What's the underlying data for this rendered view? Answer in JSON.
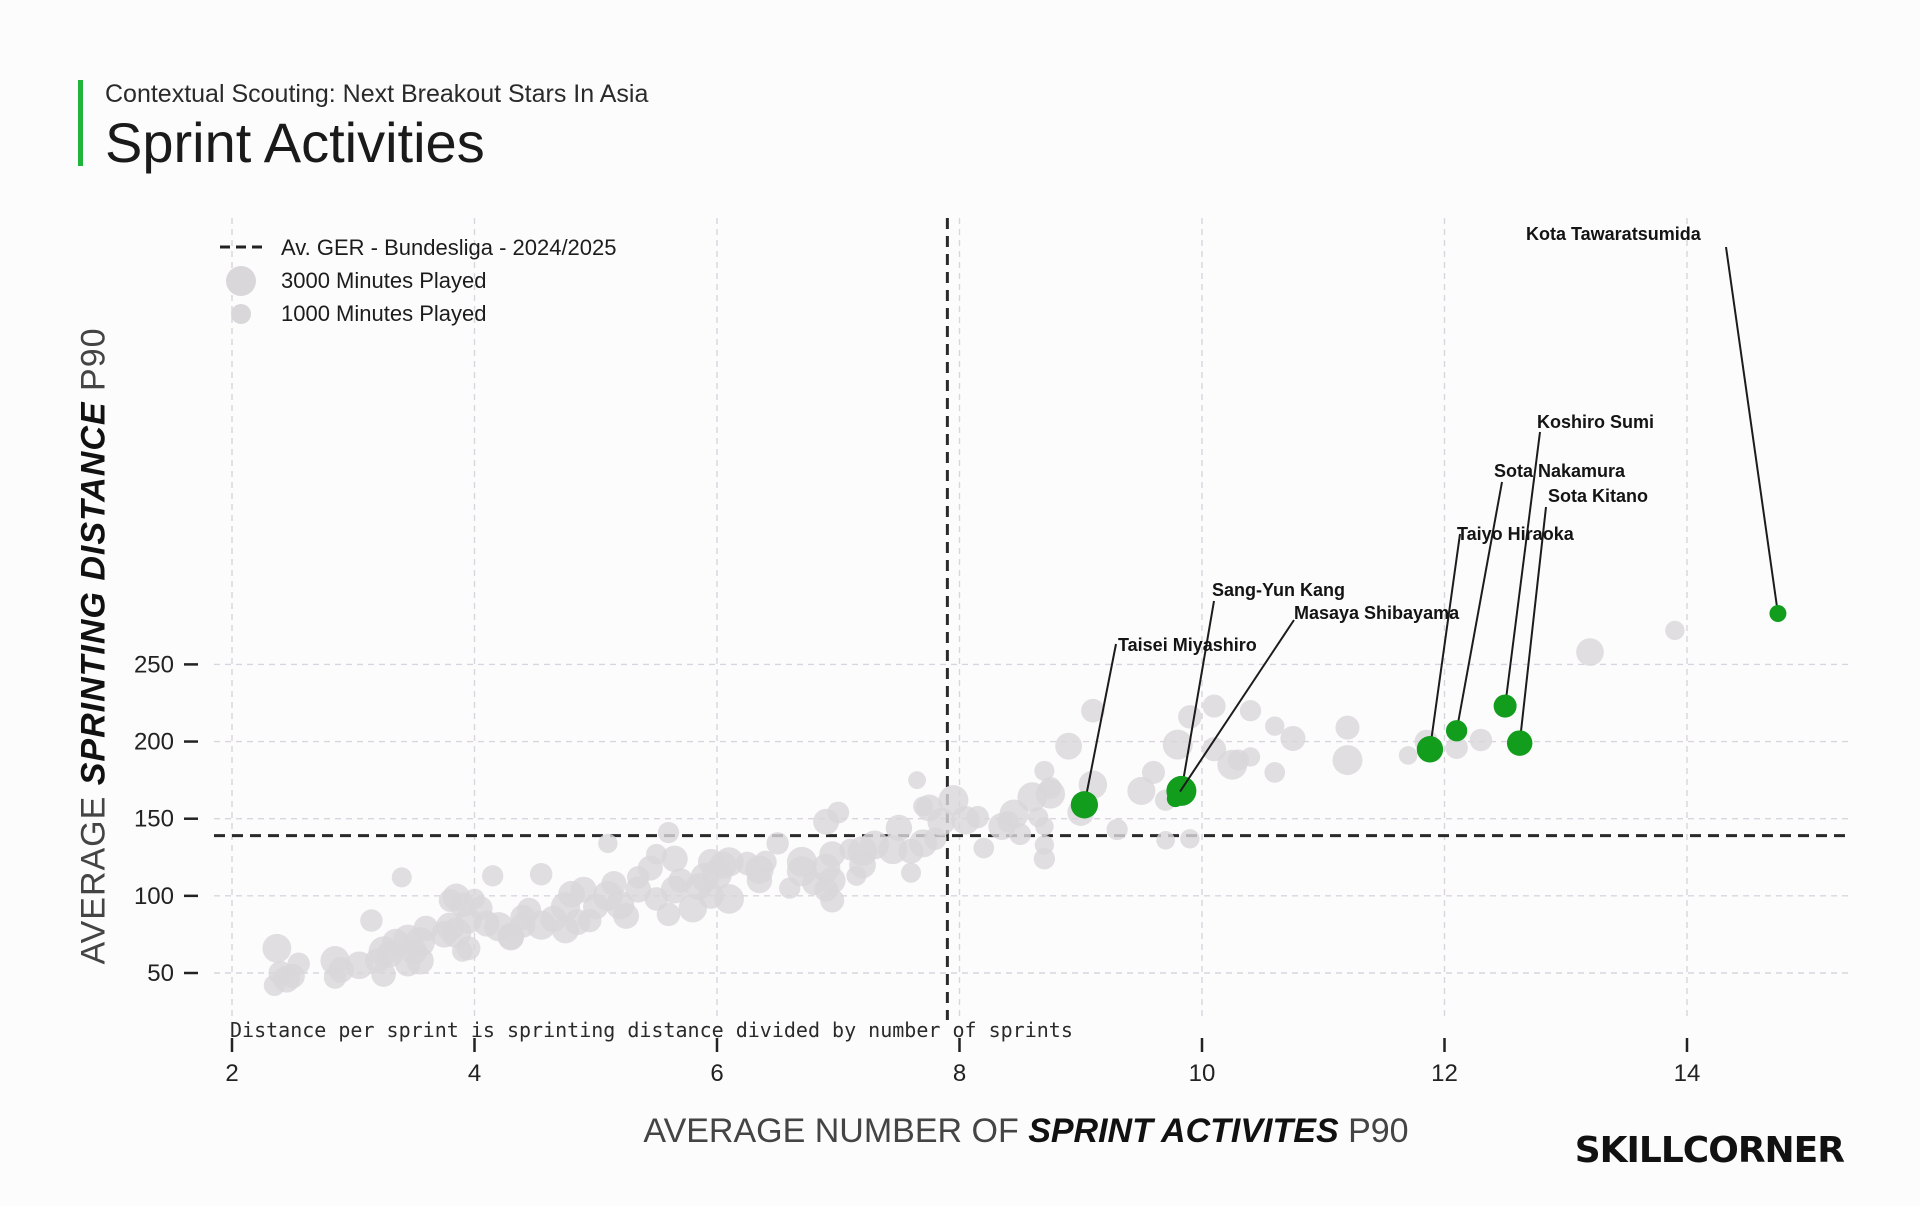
{
  "header": {
    "subtitle": "Contextual Scouting: Next Breakout Stars In Asia",
    "title": "Sprint Activities"
  },
  "axes": {
    "x_label_prefix": "AVERAGE NUMBER OF ",
    "x_label_emph": "SPRINT ACTIVITES",
    "x_label_suffix": " P90",
    "y_label_prefix": "AVERAGE ",
    "y_label_emph": "SPRINTING DISTANCE",
    "y_label_suffix": " P90"
  },
  "footnote": "Distance per sprint is sprinting distance divided by number of sprints",
  "logo": "SKILLCORNER",
  "colors": {
    "highlight": "#129d1d",
    "background_points": "#d9d7da",
    "reference_line": "#2a2a2a",
    "accent": "#1fb53a"
  },
  "chart_data": {
    "type": "scatter",
    "xlim": [
      1.8,
      15.4
    ],
    "ylim": [
      35,
      285
    ],
    "x_ticks": [
      2,
      4,
      6,
      8,
      10,
      12,
      14
    ],
    "y_ticks": [
      50,
      100,
      150,
      200,
      250
    ],
    "grid": true,
    "legend_position": "top-left",
    "legend": [
      {
        "label": "Av. GER - Bundesliga - 2024/2025",
        "kind": "dashed-line"
      },
      {
        "label": "3000 Minutes Played",
        "kind": "size",
        "minutes": 3000
      },
      {
        "label": "1000 Minutes Played",
        "kind": "size",
        "minutes": 1000
      }
    ],
    "reference_lines": {
      "x": 7.9,
      "y": 139
    },
    "highlighted": [
      {
        "name": "Kota Tawaratsumida",
        "x": 14.75,
        "y": 283,
        "minutes": 500
      },
      {
        "name": "Koshiro Sumi",
        "x": 12.5,
        "y": 223,
        "minutes": 1400
      },
      {
        "name": "Sota Nakamura",
        "x": 12.1,
        "y": 207,
        "minutes": 1100
      },
      {
        "name": "Sota Kitano",
        "x": 12.62,
        "y": 199,
        "minutes": 1900
      },
      {
        "name": "Taiyo Hiraoka",
        "x": 11.88,
        "y": 195,
        "minutes": 2100
      },
      {
        "name": "Sang-Yun Kang",
        "x": 9.83,
        "y": 168,
        "minutes": 3000
      },
      {
        "name": "Masaya Shibayama",
        "x": 9.78,
        "y": 163,
        "minutes": 500
      },
      {
        "name": "Taisei Miyashiro",
        "x": 9.03,
        "y": 159,
        "minutes": 2300
      }
    ],
    "others": [
      [
        13.9,
        272,
        800
      ],
      [
        13.2,
        258,
        2400
      ],
      [
        11.2,
        209,
        1600
      ],
      [
        10.1,
        223,
        1400
      ],
      [
        10.4,
        220,
        1100
      ],
      [
        9.9,
        216,
        1500
      ],
      [
        9.1,
        220,
        1500
      ],
      [
        10.6,
        210,
        800
      ],
      [
        10.75,
        202,
        1800
      ],
      [
        9.8,
        198,
        3000
      ],
      [
        10.1,
        195,
        1600
      ],
      [
        8.9,
        197,
        2200
      ],
      [
        10.4,
        190,
        800
      ],
      [
        10.3,
        188,
        1100
      ],
      [
        10.25,
        185,
        3000
      ],
      [
        11.2,
        188,
        3000
      ],
      [
        11.7,
        191,
        700
      ],
      [
        11.85,
        200,
        1500
      ],
      [
        12.3,
        201,
        1300
      ],
      [
        12.1,
        196,
        1300
      ],
      [
        10.6,
        180,
        1000
      ],
      [
        9.6,
        180,
        1400
      ],
      [
        8.7,
        181,
        900
      ],
      [
        8.75,
        166,
        2800
      ],
      [
        8.75,
        170,
        1200
      ],
      [
        9.1,
        172,
        2600
      ],
      [
        9.5,
        168,
        2500
      ],
      [
        9.7,
        162,
        1100
      ],
      [
        8.6,
        164,
        2900
      ],
      [
        8.45,
        153,
        2800
      ],
      [
        8.65,
        151,
        900
      ],
      [
        8.7,
        145,
        700
      ],
      [
        8.4,
        148,
        1100
      ],
      [
        7.95,
        162,
        3000
      ],
      [
        7.7,
        158,
        900
      ],
      [
        7.65,
        175,
        600
      ],
      [
        7.75,
        157,
        2200
      ],
      [
        7.85,
        148,
        2400
      ],
      [
        8.05,
        149,
        2600
      ],
      [
        8.15,
        151,
        1300
      ],
      [
        8.35,
        145,
        2300
      ],
      [
        8.5,
        140,
        1200
      ],
      [
        9.0,
        154,
        2200
      ],
      [
        9.3,
        143,
        1100
      ],
      [
        9.7,
        136,
        700
      ],
      [
        9.9,
        137,
        800
      ],
      [
        8.7,
        133,
        800
      ],
      [
        8.7,
        124,
        1100
      ],
      [
        8.2,
        131,
        1000
      ],
      [
        7.8,
        137,
        1300
      ],
      [
        7.7,
        134,
        2500
      ],
      [
        7.6,
        129,
        1800
      ],
      [
        7.6,
        115,
        900
      ],
      [
        7.5,
        144,
        2100
      ],
      [
        7.45,
        130,
        2800
      ],
      [
        7.3,
        133,
        2700
      ],
      [
        7.2,
        129,
        2900
      ],
      [
        7.1,
        130,
        1200
      ],
      [
        7.2,
        120,
        2200
      ],
      [
        7.15,
        113,
        900
      ],
      [
        6.95,
        127,
        2000
      ],
      [
        6.9,
        118,
        2600
      ],
      [
        6.7,
        122,
        3000
      ],
      [
        6.7,
        116,
        3000
      ],
      [
        6.8,
        108,
        1500
      ],
      [
        6.6,
        105,
        1100
      ],
      [
        6.9,
        104,
        1600
      ],
      [
        6.95,
        110,
        2200
      ],
      [
        6.95,
        97,
        1600
      ],
      [
        7.0,
        154,
        1200
      ],
      [
        6.9,
        148,
        2000
      ],
      [
        6.5,
        134,
        1300
      ],
      [
        6.4,
        122,
        1300
      ],
      [
        6.35,
        110,
        1900
      ],
      [
        6.35,
        117,
        2600
      ],
      [
        6.1,
        122,
        2800
      ],
      [
        6.05,
        120,
        2300
      ],
      [
        5.95,
        122,
        2000
      ],
      [
        6.0,
        114,
        3000
      ],
      [
        5.9,
        112,
        2700
      ],
      [
        5.85,
        106,
        2200
      ],
      [
        6.1,
        98,
        2900
      ],
      [
        5.95,
        100,
        2000
      ],
      [
        5.8,
        92,
        2600
      ],
      [
        5.7,
        110,
        1700
      ],
      [
        5.65,
        104,
        2400
      ],
      [
        5.5,
        98,
        1500
      ],
      [
        5.6,
        88,
        1500
      ],
      [
        5.45,
        118,
        1800
      ],
      [
        5.35,
        112,
        1300
      ],
      [
        5.35,
        104,
        2000
      ],
      [
        5.15,
        108,
        1800
      ],
      [
        5.2,
        94,
        2600
      ],
      [
        5.25,
        87,
        2000
      ],
      [
        5.1,
        100,
        3000
      ],
      [
        5.0,
        93,
        1900
      ],
      [
        4.9,
        104,
        2000
      ],
      [
        4.95,
        84,
        1500
      ],
      [
        4.8,
        101,
        2200
      ],
      [
        4.85,
        83,
        2000
      ],
      [
        4.75,
        93,
        2800
      ],
      [
        4.65,
        85,
        2100
      ],
      [
        4.55,
        114,
        1300
      ],
      [
        4.55,
        81,
        2800
      ],
      [
        4.75,
        78,
        2300
      ],
      [
        4.45,
        91,
        1600
      ],
      [
        4.4,
        86,
        1900
      ],
      [
        4.4,
        81,
        1800
      ],
      [
        4.3,
        74,
        2200
      ],
      [
        4.2,
        80,
        2800
      ],
      [
        4.1,
        82,
        2000
      ],
      [
        4.05,
        92,
        1600
      ],
      [
        4.15,
        113,
        1100
      ],
      [
        3.85,
        99,
        2400
      ],
      [
        3.9,
        94,
        1800
      ],
      [
        3.95,
        84,
        2100
      ],
      [
        3.85,
        76,
        3000
      ],
      [
        3.8,
        80,
        2600
      ],
      [
        3.95,
        66,
        1600
      ],
      [
        3.9,
        64,
        1000
      ],
      [
        3.75,
        75,
        2100
      ],
      [
        3.6,
        79,
        1800
      ],
      [
        3.55,
        70,
        3000
      ],
      [
        3.45,
        72,
        2700
      ],
      [
        3.5,
        64,
        2200
      ],
      [
        3.45,
        56,
        1900
      ],
      [
        3.55,
        58,
        2400
      ],
      [
        3.35,
        70,
        2200
      ],
      [
        3.25,
        64,
        3000
      ],
      [
        3.3,
        62,
        2100
      ],
      [
        3.2,
        58,
        1800
      ],
      [
        3.25,
        49,
        1700
      ],
      [
        3.05,
        55,
        2400
      ],
      [
        2.85,
        58,
        2800
      ],
      [
        2.9,
        52,
        1900
      ],
      [
        2.85,
        47,
        1300
      ],
      [
        2.55,
        56,
        1300
      ],
      [
        2.5,
        48,
        1700
      ],
      [
        2.45,
        46,
        2200
      ],
      [
        2.4,
        50,
        1600
      ],
      [
        2.37,
        66,
        2700
      ],
      [
        2.35,
        42,
        1100
      ],
      [
        3.4,
        112,
        900
      ],
      [
        3.8,
        97,
        1400
      ],
      [
        4.0,
        98,
        1000
      ],
      [
        3.15,
        84,
        1300
      ],
      [
        4.3,
        73,
        2000
      ],
      [
        5.1,
        134,
        800
      ],
      [
        5.6,
        141,
        1100
      ],
      [
        5.65,
        124,
        2100
      ],
      [
        5.5,
        127,
        1000
      ],
      [
        6.25,
        121,
        1500
      ]
    ]
  }
}
